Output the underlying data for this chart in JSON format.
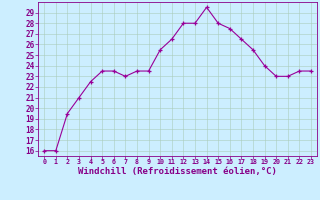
{
  "x": [
    0,
    1,
    2,
    3,
    4,
    5,
    6,
    7,
    8,
    9,
    10,
    11,
    12,
    13,
    14,
    15,
    16,
    17,
    18,
    19,
    20,
    21,
    22,
    23
  ],
  "y": [
    16,
    16,
    19.5,
    21,
    22.5,
    23.5,
    23.5,
    23,
    23.5,
    23.5,
    25.5,
    26.5,
    28,
    28,
    29.5,
    28,
    27.5,
    26.5,
    25.5,
    24,
    23,
    23,
    23.5,
    23.5
  ],
  "line_color": "#990099",
  "marker_color": "#990099",
  "bg_color": "#cceeff",
  "grid_color": "#aaccbb",
  "xlabel": "Windchill (Refroidissement éolien,°C)",
  "ylim": [
    15.5,
    30
  ],
  "xlim": [
    -0.5,
    23.5
  ],
  "yticks": [
    16,
    17,
    18,
    19,
    20,
    21,
    22,
    23,
    24,
    25,
    26,
    27,
    28,
    29
  ],
  "xticks": [
    0,
    1,
    2,
    3,
    4,
    5,
    6,
    7,
    8,
    9,
    10,
    11,
    12,
    13,
    14,
    15,
    16,
    17,
    18,
    19,
    20,
    21,
    22,
    23
  ],
  "tick_fontsize": 5.5,
  "xlabel_fontsize": 6.5,
  "label_color": "#880088"
}
